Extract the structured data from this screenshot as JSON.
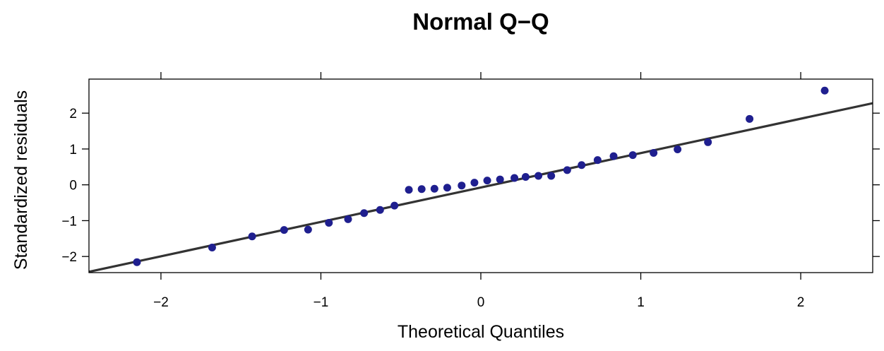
{
  "chart_data": {
    "type": "scatter",
    "title": "Normal Q−Q",
    "xlabel": "Theoretical Quantiles",
    "ylabel": "Standardized residuals",
    "xlim": [
      -2.45,
      2.45
    ],
    "ylim": [
      -2.45,
      2.95
    ],
    "x_ticks": [
      -2,
      -1,
      0,
      1,
      2
    ],
    "x_tick_labels": [
      "−2",
      "−1",
      "0",
      "1",
      "2"
    ],
    "y_ticks": [
      -2,
      -1,
      0,
      1,
      2
    ],
    "y_tick_labels": [
      "−2",
      "−1",
      "0",
      "1",
      "2"
    ],
    "grid": false,
    "point_color": "#1f1f8f",
    "line_color": "#333333",
    "reference_line": {
      "intercept": -0.075,
      "slope": 0.96
    },
    "points": [
      {
        "x": -2.15,
        "y": -2.16
      },
      {
        "x": -1.68,
        "y": -1.75
      },
      {
        "x": -1.43,
        "y": -1.44
      },
      {
        "x": -1.23,
        "y": -1.26
      },
      {
        "x": -1.08,
        "y": -1.25
      },
      {
        "x": -0.95,
        "y": -1.06
      },
      {
        "x": -0.83,
        "y": -0.96
      },
      {
        "x": -0.73,
        "y": -0.79
      },
      {
        "x": -0.63,
        "y": -0.7
      },
      {
        "x": -0.54,
        "y": -0.58
      },
      {
        "x": -0.45,
        "y": -0.14
      },
      {
        "x": -0.37,
        "y": -0.12
      },
      {
        "x": -0.29,
        "y": -0.11
      },
      {
        "x": -0.21,
        "y": -0.08
      },
      {
        "x": -0.12,
        "y": -0.02
      },
      {
        "x": -0.04,
        "y": 0.06
      },
      {
        "x": 0.04,
        "y": 0.12
      },
      {
        "x": 0.12,
        "y": 0.15
      },
      {
        "x": 0.21,
        "y": 0.19
      },
      {
        "x": 0.28,
        "y": 0.22
      },
      {
        "x": 0.36,
        "y": 0.25
      },
      {
        "x": 0.44,
        "y": 0.25
      },
      {
        "x": 0.54,
        "y": 0.41
      },
      {
        "x": 0.63,
        "y": 0.55
      },
      {
        "x": 0.73,
        "y": 0.69
      },
      {
        "x": 0.83,
        "y": 0.8
      },
      {
        "x": 0.95,
        "y": 0.83
      },
      {
        "x": 1.08,
        "y": 0.89
      },
      {
        "x": 1.23,
        "y": 0.99
      },
      {
        "x": 1.42,
        "y": 1.19
      },
      {
        "x": 1.68,
        "y": 1.84
      },
      {
        "x": 2.15,
        "y": 2.63
      }
    ]
  }
}
